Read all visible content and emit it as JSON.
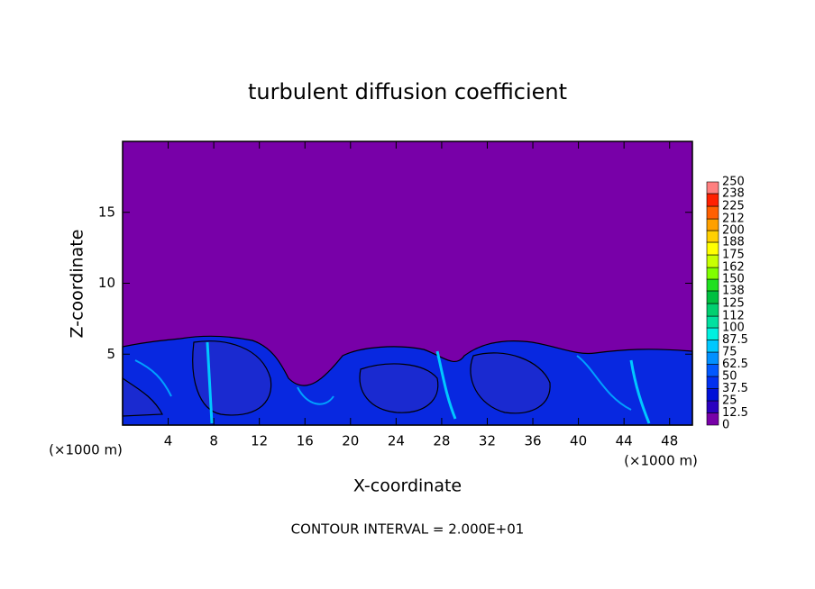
{
  "chart_data": {
    "type": "contour",
    "title": "turbulent diffusion coefficient",
    "xlabel": "X-coordinate",
    "ylabel": "Z-coordinate",
    "xunit": "(×1000 m)",
    "yunit": "(×1000 m)",
    "note": "CONTOUR INTERVAL = 2.000E+01",
    "xlim": [
      0,
      50
    ],
    "ylim": [
      0,
      20
    ],
    "xticks": [
      4,
      8,
      12,
      16,
      20,
      24,
      28,
      32,
      36,
      40,
      44,
      48
    ],
    "yticks": [
      5,
      10,
      15
    ],
    "background_color": "#7800a8",
    "colorbar": {
      "levels": [
        0,
        12.5,
        25,
        37.5,
        50,
        62.5,
        75,
        87.5,
        100,
        112,
        125,
        138,
        150,
        162,
        175,
        188,
        200,
        212,
        225,
        238,
        250
      ],
      "colors": [
        "#7800a8",
        "#2a00c0",
        "#0010d8",
        "#0030f0",
        "#0058ff",
        "#0090ff",
        "#00c8ff",
        "#00f0e0",
        "#00e0a0",
        "#00d070",
        "#00c040",
        "#20e020",
        "#80ff00",
        "#c8ff00",
        "#ffff00",
        "#ffd000",
        "#ffa000",
        "#ff6000",
        "#ff2000",
        "#ff8080"
      ]
    }
  }
}
